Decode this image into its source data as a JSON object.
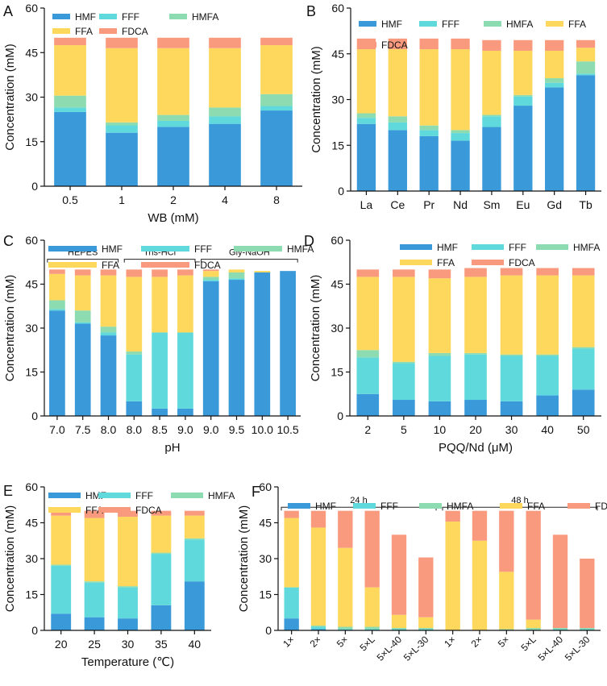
{
  "colors": {
    "HMF": "#3a9ad9",
    "FFF": "#5fd9dc",
    "HMFA": "#8ddbb0",
    "FFA": "#fdd85d",
    "FDCA": "#f99a7f"
  },
  "legend_labels": [
    "HMF",
    "FFF",
    "HMFA",
    "FFA",
    "FDCA"
  ],
  "chart_data": [
    {
      "panel": "A",
      "type": "bar",
      "stacked": true,
      "xlabel": "WB (mM)",
      "ylabel": "Concentration (mM)",
      "ylim": [
        0,
        60
      ],
      "yticks": [
        0,
        15,
        30,
        45,
        60
      ],
      "categories": [
        "0.5",
        "1",
        "2",
        "4",
        "8"
      ],
      "series": [
        {
          "name": "HMF",
          "values": [
            25,
            18,
            20,
            21,
            25.5
          ]
        },
        {
          "name": "FFF",
          "values": [
            1.5,
            2.5,
            2,
            2.5,
            1.5
          ]
        },
        {
          "name": "HMFA",
          "values": [
            4,
            1,
            2,
            3,
            4
          ]
        },
        {
          "name": "FFA",
          "values": [
            17,
            25,
            22.5,
            20,
            16.5
          ]
        },
        {
          "name": "FDCA",
          "values": [
            2.5,
            3.5,
            3.5,
            3.5,
            2.5
          ]
        }
      ]
    },
    {
      "panel": "B",
      "type": "bar",
      "stacked": true,
      "xlabel": "",
      "ylabel": "Concentration (mM)",
      "ylim": [
        0,
        60
      ],
      "yticks": [
        0,
        15,
        30,
        45,
        60
      ],
      "categories": [
        "La",
        "Ce",
        "Pr",
        "Nd",
        "Sm",
        "Eu",
        "Gd",
        "Tb"
      ],
      "series": [
        {
          "name": "HMF",
          "values": [
            22,
            20,
            18,
            16.5,
            21,
            28,
            34,
            38
          ]
        },
        {
          "name": "FFF",
          "values": [
            2,
            2.5,
            2,
            2.5,
            3.5,
            3,
            1.5,
            0.5
          ]
        },
        {
          "name": "HMFA",
          "values": [
            1.5,
            2,
            1.5,
            1,
            0.5,
            0.5,
            1.5,
            4
          ]
        },
        {
          "name": "FFA",
          "values": [
            21,
            22,
            25,
            26.5,
            21,
            14.5,
            9,
            4.5
          ]
        },
        {
          "name": "FDCA",
          "values": [
            3.5,
            3.5,
            3.5,
            3.5,
            3.5,
            3.5,
            3.5,
            2.5
          ]
        }
      ]
    },
    {
      "panel": "C",
      "type": "bar",
      "stacked": true,
      "xlabel": "pH",
      "ylabel": "Concentration (mM)",
      "ylim": [
        0,
        60
      ],
      "yticks": [
        0,
        15,
        30,
        45,
        60
      ],
      "categories": [
        "7.0",
        "7.5",
        "8.0",
        "8.0",
        "8.5",
        "9.0",
        "9.0",
        "9.5",
        "10.0",
        "10.5"
      ],
      "groups": [
        {
          "label": "HEPES",
          "from": 0,
          "to": 2
        },
        {
          "label": "Tris-HCl",
          "from": 3,
          "to": 5
        },
        {
          "label": "Gly-NaOH",
          "from": 6,
          "to": 9
        }
      ],
      "series": [
        {
          "name": "HMF",
          "values": [
            36,
            31.5,
            27.5,
            5,
            2.5,
            2.5,
            46,
            46.5,
            49,
            49.5
          ]
        },
        {
          "name": "FFF",
          "values": [
            0.5,
            0.5,
            1,
            16,
            26,
            26,
            0.5,
            0.5,
            0,
            0
          ]
        },
        {
          "name": "HMFA",
          "values": [
            3,
            4,
            2,
            1,
            0,
            0,
            1,
            2,
            0,
            0
          ]
        },
        {
          "name": "FFA",
          "values": [
            9,
            12,
            17.5,
            25.5,
            19,
            19.5,
            2,
            1,
            0.5,
            0
          ]
        },
        {
          "name": "FDCA",
          "values": [
            1.5,
            2,
            2,
            2.5,
            2.5,
            2,
            0.5,
            0,
            0,
            0
          ]
        }
      ]
    },
    {
      "panel": "D",
      "type": "bar",
      "stacked": true,
      "xlabel": "PQQ/Nd (μM)",
      "ylabel": "Concentration (mM)",
      "ylim": [
        0,
        60
      ],
      "yticks": [
        0,
        15,
        30,
        45,
        60
      ],
      "categories": [
        "2",
        "5",
        "10",
        "20",
        "30",
        "40",
        "50"
      ],
      "series": [
        {
          "name": "HMF",
          "values": [
            7.5,
            5.5,
            5,
            5.5,
            5,
            7,
            9
          ]
        },
        {
          "name": "FFF",
          "values": [
            12.5,
            12.5,
            15.5,
            15.5,
            15.5,
            13.5,
            14
          ]
        },
        {
          "name": "HMFA",
          "values": [
            2.5,
            0.5,
            1,
            0.5,
            0.5,
            0.5,
            0.5
          ]
        },
        {
          "name": "FFA",
          "values": [
            25,
            29,
            25.5,
            26,
            27,
            27,
            24.5
          ]
        },
        {
          "name": "FDCA",
          "values": [
            2.5,
            2.5,
            3,
            3,
            2.5,
            2.5,
            2.5
          ]
        }
      ]
    },
    {
      "panel": "E",
      "type": "bar",
      "stacked": true,
      "xlabel": "Temperature (℃)",
      "ylabel": "Concentration (mM)",
      "ylim": [
        0,
        60
      ],
      "yticks": [
        0,
        15,
        30,
        45,
        60
      ],
      "categories": [
        "20",
        "25",
        "30",
        "35",
        "40"
      ],
      "series": [
        {
          "name": "HMF",
          "values": [
            7,
            5.5,
            5,
            10.5,
            20.5
          ]
        },
        {
          "name": "FFF",
          "values": [
            20,
            14.5,
            13,
            21.5,
            17.5
          ]
        },
        {
          "name": "HMFA",
          "values": [
            0.5,
            0.5,
            0.5,
            0.5,
            0.5
          ]
        },
        {
          "name": "FFA",
          "values": [
            20.5,
            26.5,
            29,
            15.5,
            9.5
          ]
        },
        {
          "name": "FDCA",
          "values": [
            2,
            3,
            2.5,
            2,
            2
          ]
        }
      ]
    },
    {
      "panel": "F",
      "type": "bar",
      "stacked": true,
      "xlabel": "",
      "ylabel": "Concentration (mM)",
      "ylim": [
        0,
        60
      ],
      "yticks": [
        0,
        15,
        30,
        45,
        60
      ],
      "categories": [
        "1×",
        "2×",
        "5×",
        "5×L",
        "5×L-40",
        "5×L-30",
        "1×",
        "2×",
        "5×",
        "5×L",
        "5×L-40",
        "5×L-30"
      ],
      "groups": [
        {
          "label": "24 h",
          "from": 0,
          "to": 5
        },
        {
          "label": "48 h",
          "from": 6,
          "to": 11
        }
      ],
      "series": [
        {
          "name": "HMF",
          "values": [
            5,
            0.5,
            0,
            0,
            0,
            0,
            0,
            0,
            0,
            0,
            0,
            0
          ]
        },
        {
          "name": "FFF",
          "values": [
            13,
            1,
            0.5,
            0.5,
            0.5,
            0.5,
            0,
            0,
            0,
            0,
            0.5,
            0.5
          ]
        },
        {
          "name": "HMFA",
          "values": [
            0,
            0.5,
            1,
            1,
            0.5,
            0.5,
            0,
            0,
            0.5,
            1,
            0.5,
            0.5
          ]
        },
        {
          "name": "FFA",
          "values": [
            29,
            41,
            33,
            16.5,
            5.5,
            4.5,
            45.5,
            37.5,
            24,
            3.5,
            0,
            0
          ]
        },
        {
          "name": "FDCA",
          "values": [
            3,
            7,
            15.5,
            32,
            33.5,
            25,
            4.5,
            12.5,
            25.5,
            45.5,
            39,
            29
          ]
        }
      ]
    }
  ]
}
